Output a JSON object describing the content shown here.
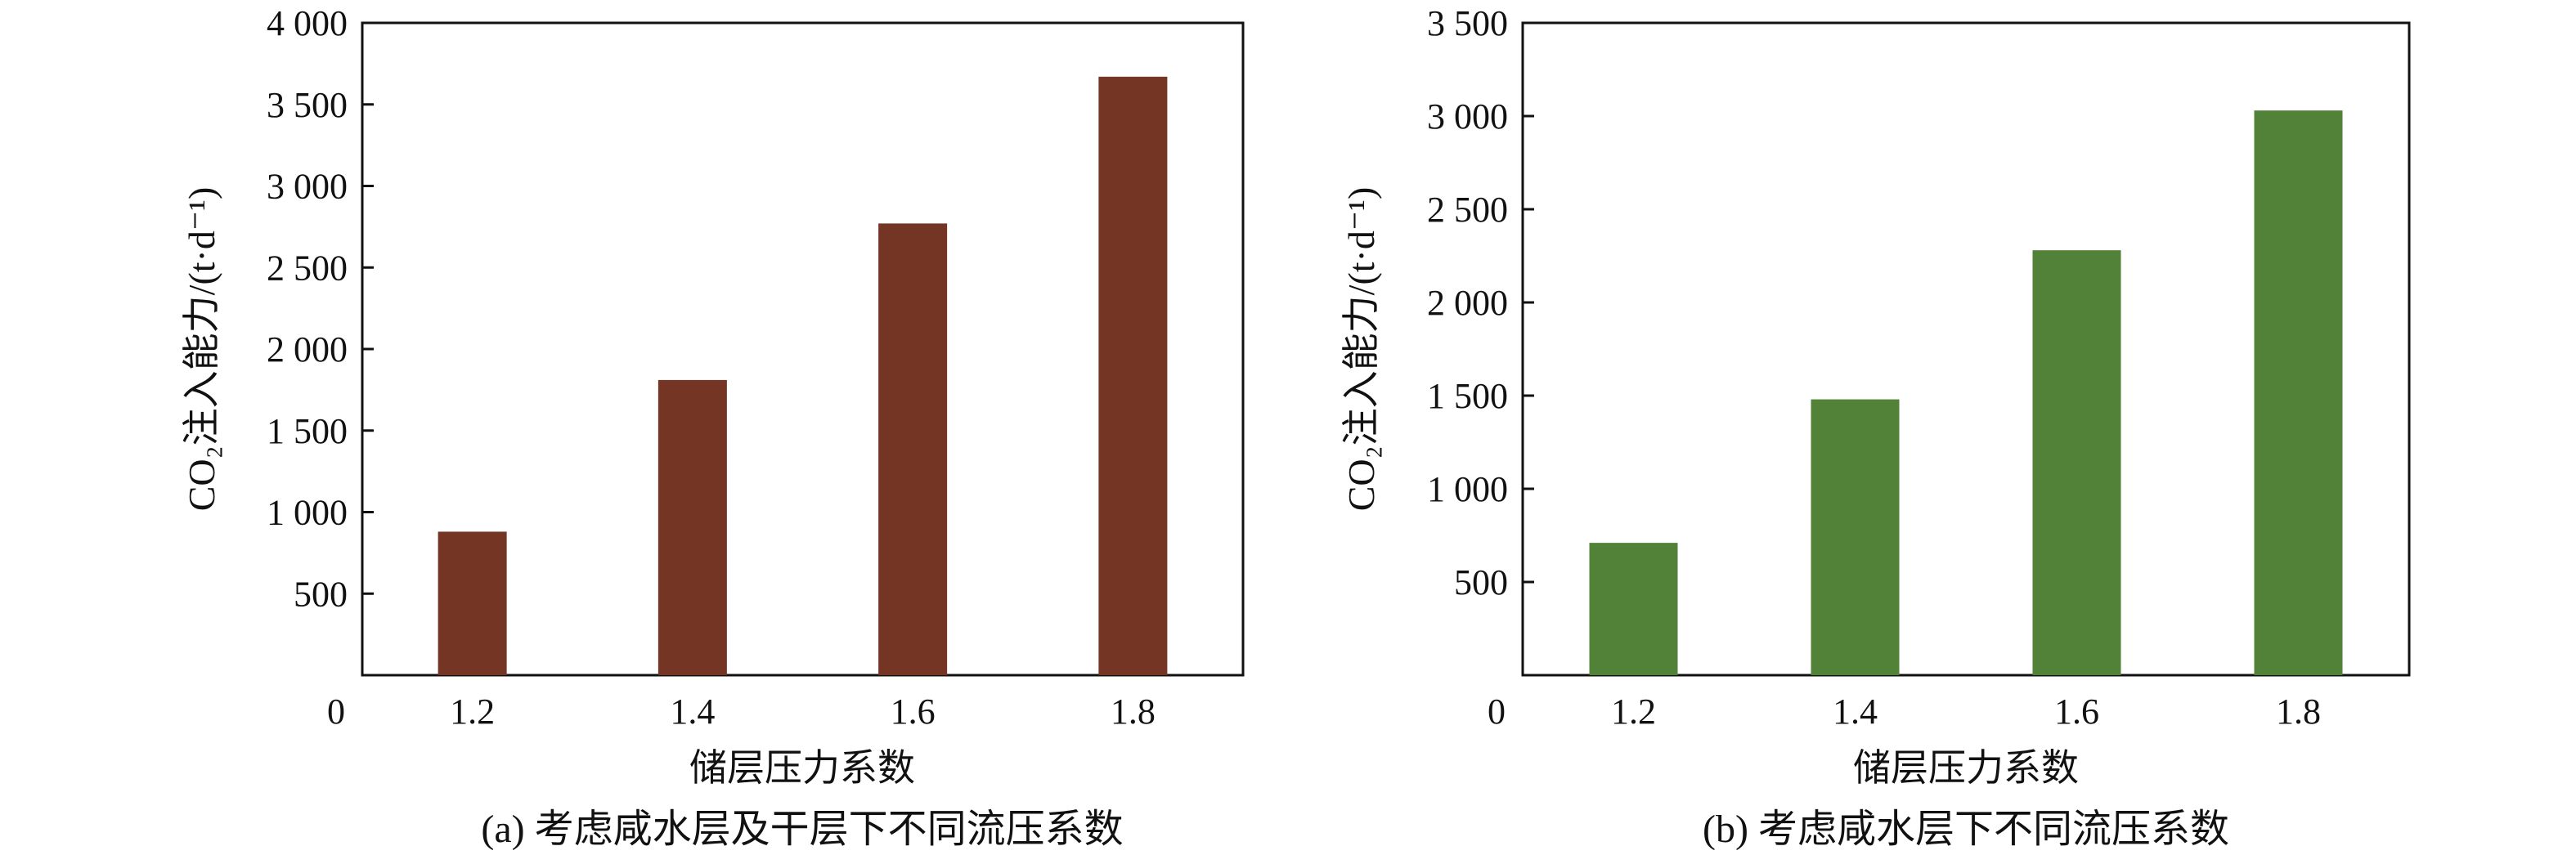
{
  "chart_data": [
    {
      "type": "bar",
      "categories": [
        "1.2",
        "1.4",
        "1.6",
        "1.8"
      ],
      "values": [
        880,
        1810,
        2770,
        3670
      ],
      "xlabel": "储层压力系数",
      "ylabel": "CO₂注入能力/(t·d⁻¹)",
      "ylim": [
        0,
        4000
      ],
      "yticks": [
        "500",
        "1 000",
        "1 500",
        "2 000",
        "2 500",
        "3 000",
        "3 500",
        "4 000"
      ],
      "zero_label": "0",
      "caption": "(a) 考虑咸水层及干层下不同流压系数",
      "bar_color": "#743525",
      "grid": false
    },
    {
      "type": "bar",
      "categories": [
        "1.2",
        "1.4",
        "1.6",
        "1.8"
      ],
      "values": [
        710,
        1480,
        2280,
        3030
      ],
      "xlabel": "储层压力系数",
      "ylabel": "CO₂注入能力/(t·d⁻¹)",
      "ylim": [
        0,
        3500
      ],
      "yticks": [
        "500",
        "1 000",
        "1 500",
        "2 000",
        "2 500",
        "3 000",
        "3 500"
      ],
      "zero_label": "0",
      "caption": "(b) 考虑咸水层下不同流压系数",
      "bar_color": "#528138",
      "grid": false
    }
  ]
}
